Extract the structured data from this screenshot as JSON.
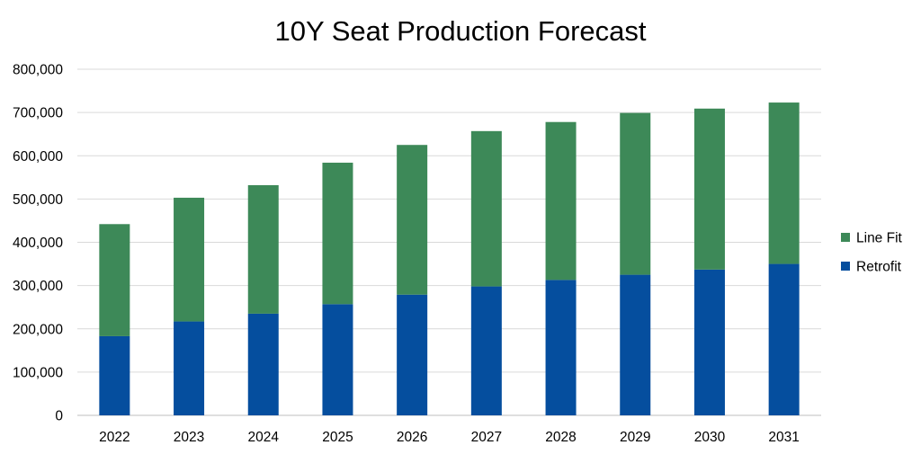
{
  "chart_data": {
    "type": "bar",
    "stacked": true,
    "title": "10Y Seat Production Forecast",
    "xlabel": "",
    "ylabel": "",
    "categories": [
      "2022",
      "2023",
      "2024",
      "2025",
      "2026",
      "2027",
      "2028",
      "2029",
      "2030",
      "2031"
    ],
    "series": [
      {
        "name": "Retrofit",
        "color": "#054E9E",
        "values": [
          183000,
          217000,
          235000,
          257000,
          279000,
          298000,
          313000,
          325000,
          337000,
          350000
        ]
      },
      {
        "name": "Line Fit",
        "color": "#3D8958",
        "values": [
          259000,
          286000,
          297000,
          327000,
          346000,
          359000,
          365000,
          374000,
          372000,
          373000
        ]
      }
    ],
    "ylim": [
      0,
      800000
    ],
    "yticks": [
      "0",
      "100,000",
      "200,000",
      "300,000",
      "400,000",
      "500,000",
      "600,000",
      "700,000",
      "800,000"
    ],
    "grid": true,
    "legend_position": "right",
    "legend": [
      {
        "name": "Line Fit",
        "color": "#3D8958"
      },
      {
        "name": "Retrofit",
        "color": "#054E9E"
      }
    ]
  }
}
